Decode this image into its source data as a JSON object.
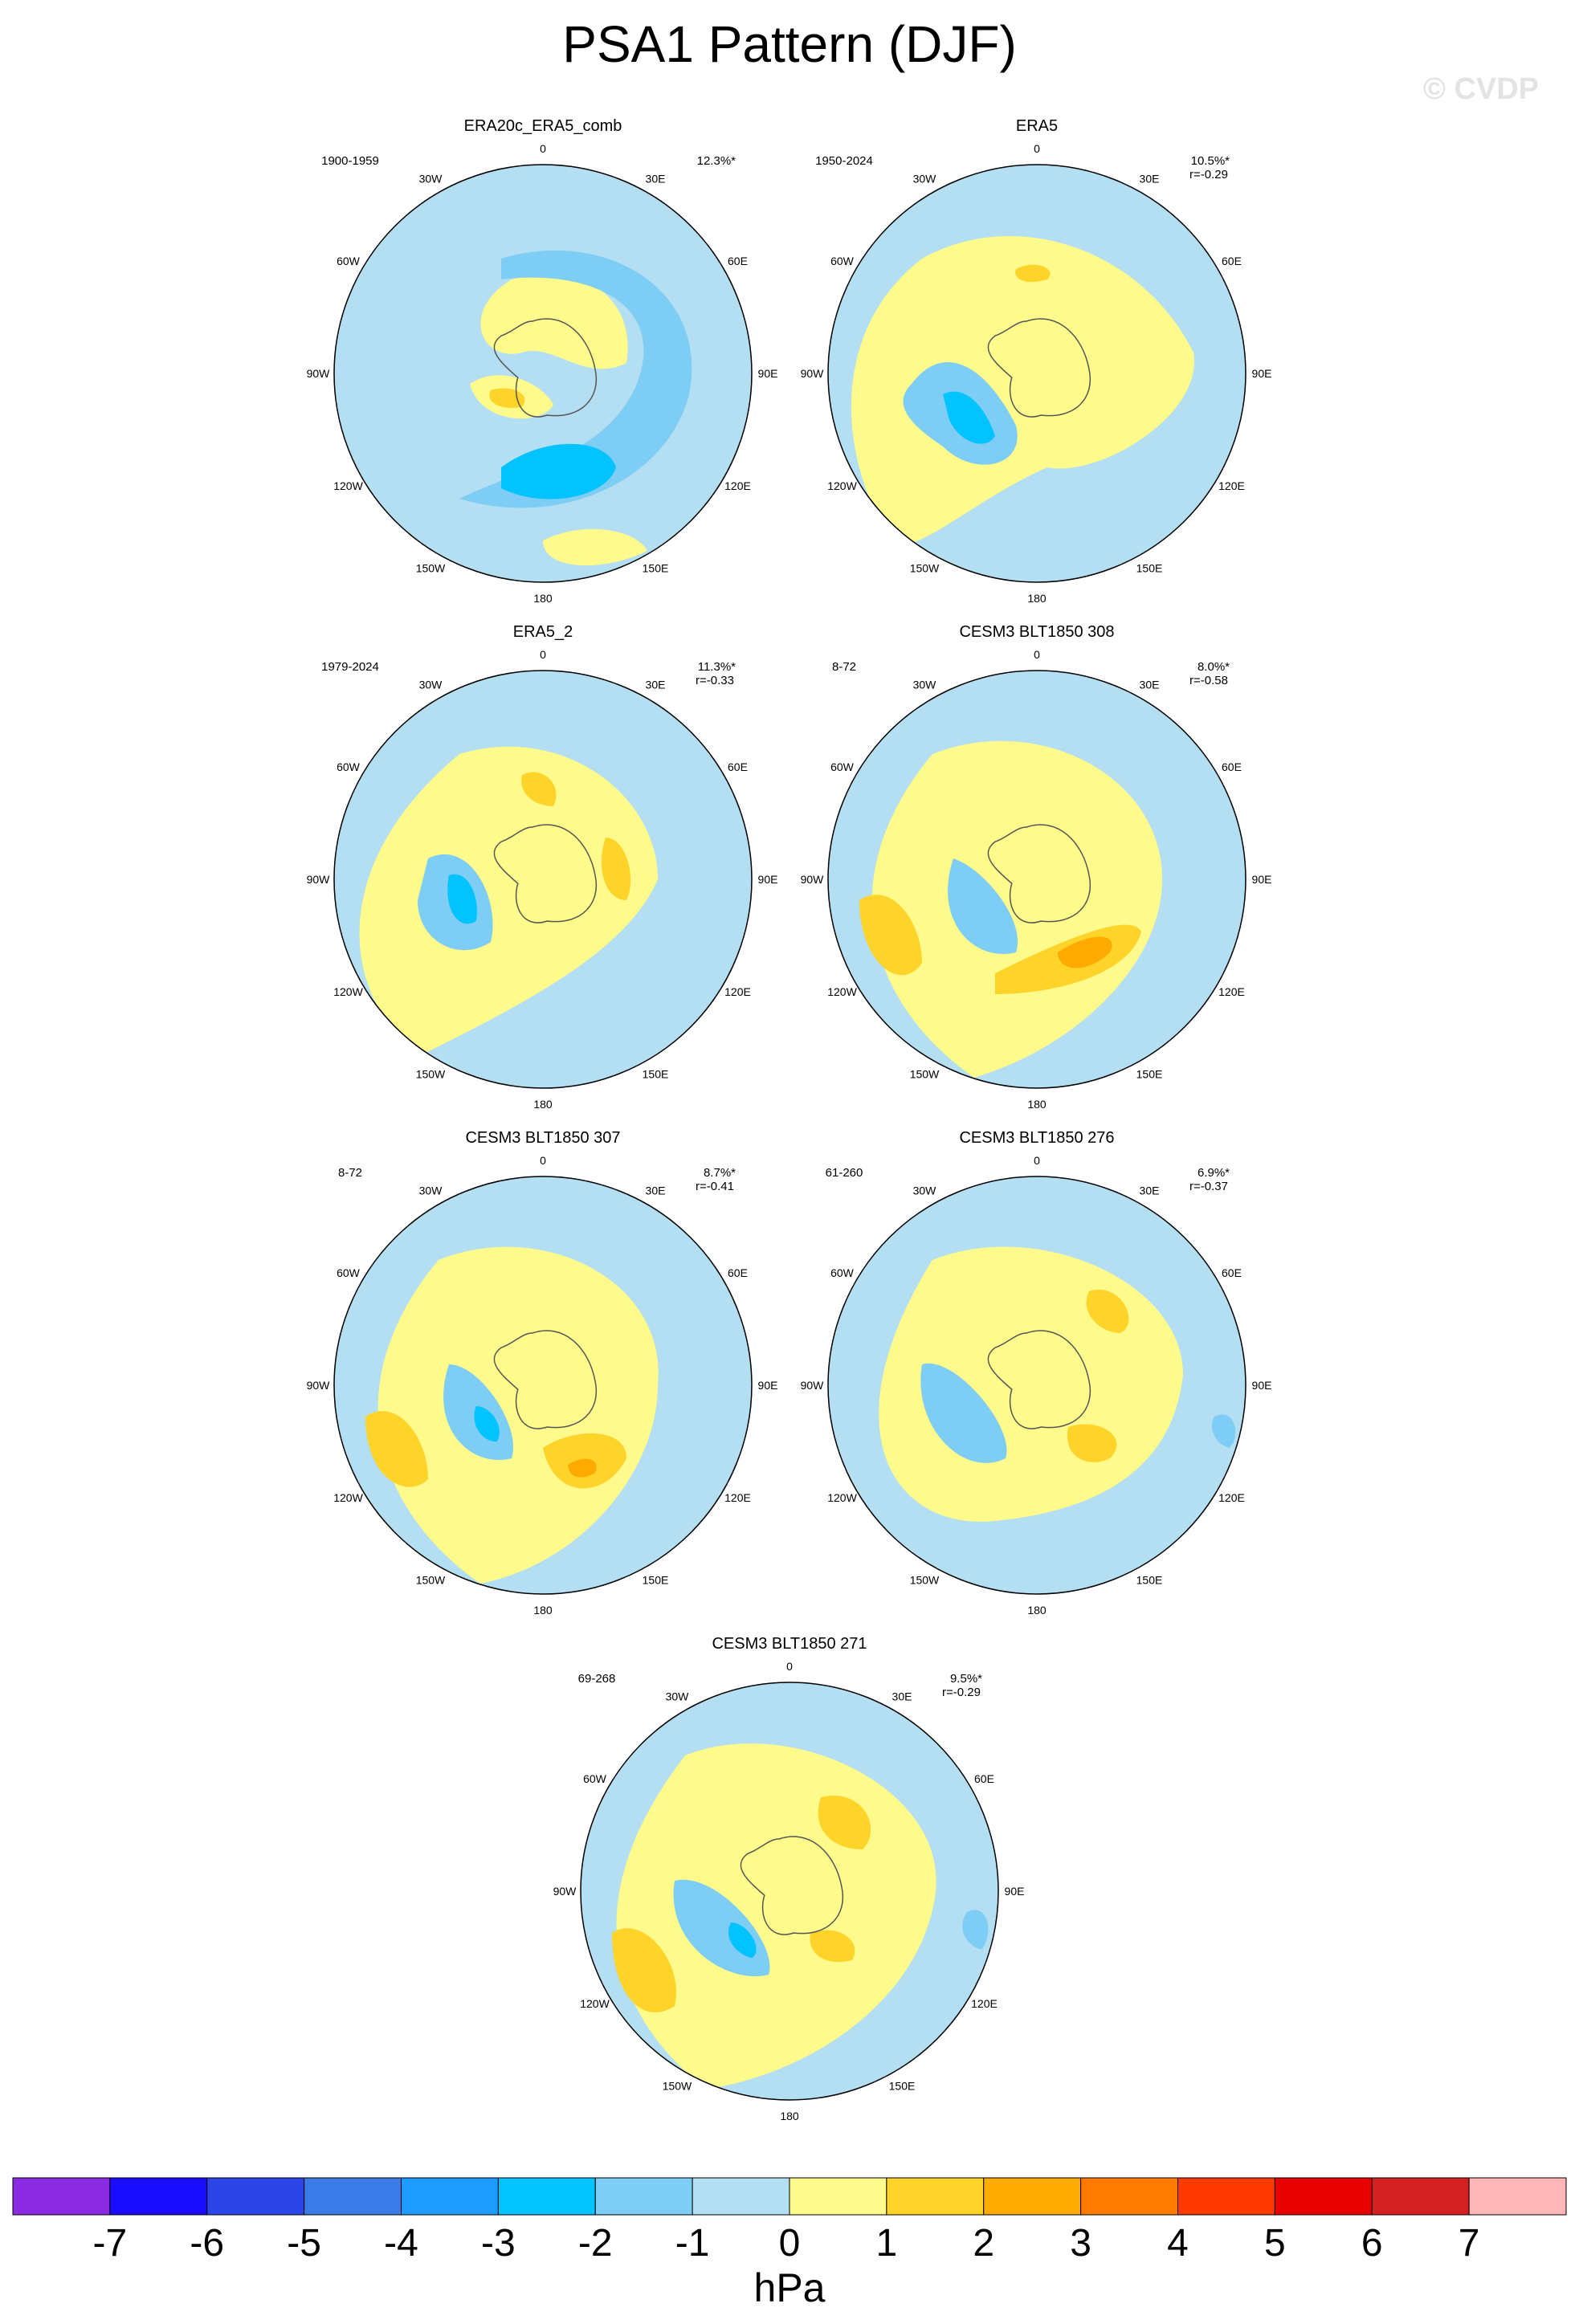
{
  "title": "PSA1 Pattern (DJF)",
  "watermark": "© CVDP",
  "lon_labels": [
    "0",
    "30E",
    "60E",
    "90E",
    "120E",
    "150E",
    "180",
    "150W",
    "120W",
    "90W",
    "60W",
    "30W"
  ],
  "panels": [
    {
      "name": "ERA20c_ERA5_comb",
      "years": "1900-1959",
      "pct": "12.3%*",
      "r": ""
    },
    {
      "name": "ERA5",
      "years": "1950-2024",
      "pct": "10.5%*",
      "r": "r=-0.29"
    },
    {
      "name": "ERA5_2",
      "years": "1979-2024",
      "pct": "11.3%*",
      "r": "r=-0.33"
    },
    {
      "name": "CESM3 BLT1850 308",
      "years": "8-72",
      "pct": "8.0%*",
      "r": "r=-0.58"
    },
    {
      "name": "CESM3 BLT1850 307",
      "years": "8-72",
      "pct": "8.7%*",
      "r": "r=-0.41"
    },
    {
      "name": "CESM3 BLT1850 276",
      "years": "61-260",
      "pct": "6.9%*",
      "r": "r=-0.37"
    },
    {
      "name": "CESM3 BLT1850 271",
      "years": "69-268",
      "pct": "9.5%*",
      "r": "r=-0.29"
    }
  ],
  "colorbar": {
    "unit": "hPa",
    "labels": [
      "-7",
      "-6",
      "-5",
      "-4",
      "-3",
      "-2",
      "-1",
      "0",
      "1",
      "2",
      "3",
      "4",
      "5",
      "6",
      "7"
    ],
    "colors": [
      "#8a2be2",
      "#1a0dff",
      "#2b45e6",
      "#3b7be8",
      "#1e9bff",
      "#00c3ff",
      "#7dcdf5",
      "#b4dff2",
      "#fffa8c",
      "#ffd42a",
      "#ffaa00",
      "#ff7a00",
      "#ff3a00",
      "#e60000",
      "#d32020",
      "#ffb6b9"
    ]
  },
  "colors": {
    "ocean": "#b4dff2",
    "land_line": "#555555"
  }
}
